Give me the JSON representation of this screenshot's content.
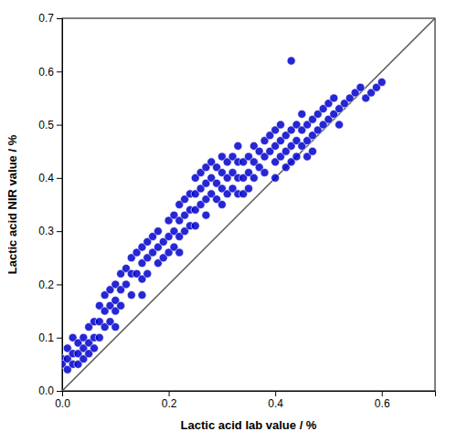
{
  "chart_data": {
    "type": "scatter",
    "xlabel": "Lactic acid lab value / %",
    "ylabel": "Lactic acid NIR value / %",
    "xlim": [
      0.0,
      0.7
    ],
    "ylim": [
      0.0,
      0.7
    ],
    "xticks": [
      {
        "value": 0.0,
        "label": "0.0"
      },
      0.2,
      0.4,
      0.6
    ],
    "yticks": [
      {
        "value": 0.0,
        "label": "0.0"
      },
      0.1,
      0.2,
      0.3,
      0.4,
      0.5,
      0.6,
      0.7
    ],
    "grid": false,
    "series": [
      {
        "type": "scatter",
        "marker": "circle",
        "color": "#0000CC",
        "x": [
          0.0,
          0.0,
          0.01,
          0.01,
          0.01,
          0.02,
          0.02,
          0.02,
          0.03,
          0.03,
          0.03,
          0.04,
          0.04,
          0.04,
          0.05,
          0.05,
          0.05,
          0.06,
          0.06,
          0.06,
          0.07,
          0.07,
          0.07,
          0.08,
          0.08,
          0.08,
          0.09,
          0.09,
          0.09,
          0.1,
          0.1,
          0.1,
          0.1,
          0.11,
          0.11,
          0.11,
          0.12,
          0.12,
          0.13,
          0.13,
          0.13,
          0.14,
          0.14,
          0.15,
          0.15,
          0.15,
          0.15,
          0.16,
          0.16,
          0.16,
          0.17,
          0.17,
          0.18,
          0.18,
          0.18,
          0.19,
          0.19,
          0.2,
          0.2,
          0.2,
          0.21,
          0.21,
          0.21,
          0.22,
          0.22,
          0.22,
          0.22,
          0.23,
          0.23,
          0.23,
          0.24,
          0.24,
          0.24,
          0.25,
          0.25,
          0.25,
          0.25,
          0.26,
          0.26,
          0.26,
          0.27,
          0.27,
          0.27,
          0.27,
          0.28,
          0.28,
          0.28,
          0.29,
          0.29,
          0.29,
          0.3,
          0.3,
          0.3,
          0.3,
          0.31,
          0.31,
          0.31,
          0.32,
          0.32,
          0.32,
          0.33,
          0.33,
          0.33,
          0.33,
          0.34,
          0.34,
          0.34,
          0.35,
          0.35,
          0.35,
          0.36,
          0.36,
          0.36,
          0.37,
          0.37,
          0.38,
          0.38,
          0.38,
          0.39,
          0.39,
          0.4,
          0.4,
          0.4,
          0.4,
          0.41,
          0.41,
          0.41,
          0.42,
          0.42,
          0.42,
          0.43,
          0.43,
          0.43,
          0.43,
          0.44,
          0.44,
          0.44,
          0.45,
          0.45,
          0.45,
          0.46,
          0.46,
          0.46,
          0.47,
          0.47,
          0.47,
          0.48,
          0.48,
          0.49,
          0.49,
          0.5,
          0.5,
          0.51,
          0.51,
          0.52,
          0.52,
          0.53,
          0.54,
          0.55,
          0.56,
          0.57,
          0.58,
          0.59,
          0.6
        ],
        "values": [
          0.06,
          0.05,
          0.04,
          0.08,
          0.06,
          0.07,
          0.1,
          0.05,
          0.09,
          0.07,
          0.05,
          0.1,
          0.08,
          0.06,
          0.12,
          0.09,
          0.07,
          0.13,
          0.1,
          0.08,
          0.16,
          0.13,
          0.1,
          0.18,
          0.15,
          0.12,
          0.19,
          0.16,
          0.13,
          0.2,
          0.17,
          0.15,
          0.12,
          0.22,
          0.19,
          0.16,
          0.23,
          0.2,
          0.25,
          0.22,
          0.18,
          0.26,
          0.22,
          0.27,
          0.24,
          0.21,
          0.18,
          0.28,
          0.25,
          0.22,
          0.29,
          0.26,
          0.3,
          0.27,
          0.24,
          0.28,
          0.25,
          0.32,
          0.29,
          0.26,
          0.33,
          0.3,
          0.27,
          0.35,
          0.32,
          0.29,
          0.26,
          0.36,
          0.33,
          0.3,
          0.37,
          0.34,
          0.31,
          0.4,
          0.37,
          0.34,
          0.31,
          0.41,
          0.38,
          0.35,
          0.42,
          0.39,
          0.36,
          0.33,
          0.43,
          0.4,
          0.37,
          0.42,
          0.39,
          0.36,
          0.44,
          0.41,
          0.38,
          0.35,
          0.43,
          0.4,
          0.37,
          0.44,
          0.41,
          0.38,
          0.46,
          0.43,
          0.4,
          0.37,
          0.43,
          0.4,
          0.37,
          0.44,
          0.41,
          0.38,
          0.46,
          0.43,
          0.4,
          0.45,
          0.42,
          0.47,
          0.44,
          0.41,
          0.48,
          0.45,
          0.49,
          0.46,
          0.43,
          0.4,
          0.5,
          0.47,
          0.44,
          0.48,
          0.45,
          0.42,
          0.62,
          0.49,
          0.46,
          0.43,
          0.5,
          0.47,
          0.44,
          0.52,
          0.49,
          0.46,
          0.5,
          0.47,
          0.44,
          0.51,
          0.48,
          0.45,
          0.52,
          0.49,
          0.53,
          0.5,
          0.54,
          0.51,
          0.55,
          0.52,
          0.53,
          0.5,
          0.54,
          0.55,
          0.56,
          0.57,
          0.55,
          0.56,
          0.57,
          0.58
        ]
      },
      {
        "type": "line",
        "line_style": "solid",
        "color": "#555555",
        "x": [
          0,
          0.7
        ],
        "values": [
          0,
          0.7
        ]
      }
    ]
  }
}
